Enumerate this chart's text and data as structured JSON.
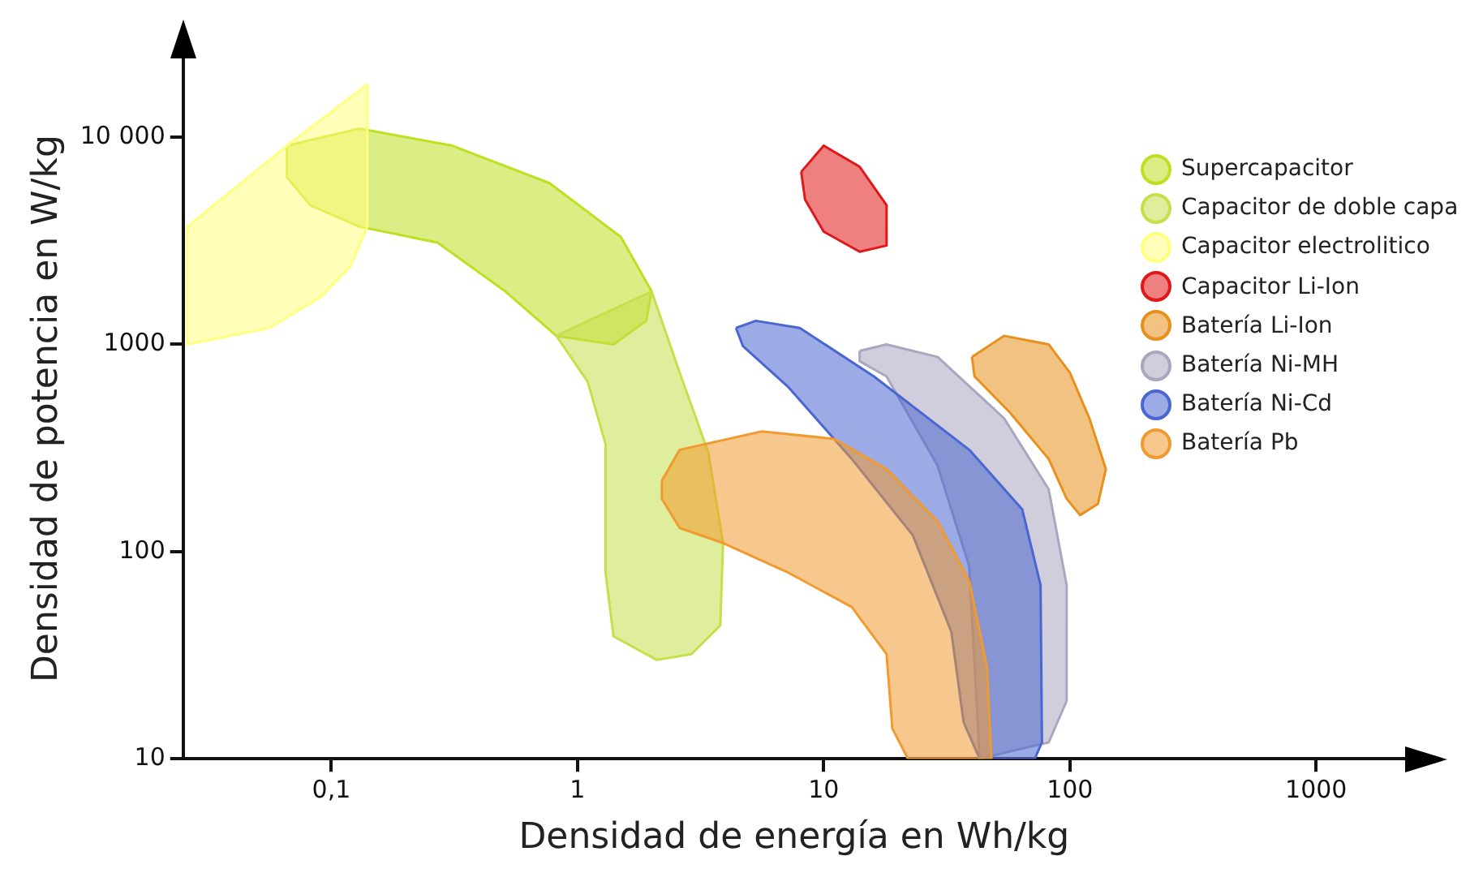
{
  "chart_data": {
    "type": "area",
    "xlabel": "Densidad de energía en Wh/kg",
    "ylabel": "Densidad de potencia en W/kg",
    "log": "xy",
    "xlim": [
      0.025,
      2300
    ],
    "ylim": [
      10,
      24000
    ],
    "xticks": [
      {
        "value": 0.1,
        "label": "0,1"
      },
      1,
      10,
      100,
      1000
    ],
    "yticks": [
      10,
      100,
      1000,
      {
        "value": 10000,
        "label": "10 000"
      }
    ],
    "grid": false,
    "legend": "top right",
    "series": [
      {
        "name": "Supercapacitor",
        "color": "#bde021",
        "x": [
          0.066,
          0.13,
          0.31,
          0.77,
          1.5,
          2.0,
          1.9,
          1.4,
          0.82,
          0.51,
          0.27,
          0.13,
          0.082,
          0.066
        ],
        "values": [
          9100,
          11000,
          9100,
          6000,
          3300,
          1800,
          1300,
          1000,
          1100,
          1800,
          3100,
          3700,
          4700,
          6400
        ]
      },
      {
        "name": "Capacitor de doble capa",
        "color": "#c4e04a",
        "x": [
          2.0,
          2.6,
          3.4,
          3.9,
          3.8,
          2.9,
          2.1,
          1.4,
          1.3,
          1.3,
          1.1,
          0.82
        ],
        "values": [
          1800,
          730,
          300,
          110,
          44,
          32,
          30,
          39,
          79,
          330,
          660,
          1100
        ]
      },
      {
        "name": "Capacitor electrolitico",
        "color": "#ffff80",
        "x": [
          0.026,
          0.026,
          0.066,
          0.14,
          0.14,
          0.12,
          0.091,
          0.056
        ],
        "values": [
          1000,
          3700,
          9100,
          18000,
          3700,
          2400,
          1700,
          1200
        ]
      },
      {
        "name": "Capacitor Li-Ion",
        "color": "#e01818",
        "x": [
          8.1,
          10,
          14,
          18,
          18,
          14,
          10,
          8.4
        ],
        "values": [
          6800,
          9100,
          7200,
          4700,
          3000,
          2800,
          3500,
          5000
        ]
      },
      {
        "name": "Batería Li-Ion",
        "color": "#e8901c",
        "x": [
          40,
          54,
          82,
          100,
          120,
          140,
          130,
          110,
          97,
          82,
          57,
          41
        ],
        "values": [
          870,
          1100,
          1000,
          730,
          440,
          250,
          170,
          150,
          180,
          280,
          470,
          700
        ]
      },
      {
        "name": "Batería Ni-MH",
        "color": "#aaa6c0",
        "x": [
          14,
          18,
          29,
          54,
          82,
          97,
          97,
          82,
          60,
          43,
          39,
          29,
          18,
          14
        ],
        "values": [
          930,
          1000,
          870,
          440,
          200,
          69,
          19,
          12,
          11,
          10,
          85,
          260,
          700,
          830
        ]
      },
      {
        "name": "Batería Ni-Cd",
        "color": "#4a66d0",
        "x": [
          4.4,
          5.3,
          8.0,
          16,
          39,
          64,
          76,
          77,
          72,
          43,
          37,
          33,
          23,
          13,
          7.2,
          4.7
        ],
        "values": [
          1200,
          1300,
          1200,
          700,
          310,
          160,
          69,
          12,
          10,
          10,
          15,
          41,
          120,
          280,
          620,
          980
        ]
      },
      {
        "name": "Batería Pb",
        "color": "#f09a30",
        "x": [
          2.2,
          2.6,
          5.6,
          11,
          18,
          29,
          39,
          46,
          48,
          22,
          19,
          18,
          13,
          7.2,
          3.9,
          2.6,
          2.2
        ],
        "values": [
          220,
          310,
          380,
          350,
          250,
          140,
          72,
          28,
          10,
          10,
          14,
          32,
          54,
          79,
          110,
          130,
          180
        ]
      }
    ]
  }
}
